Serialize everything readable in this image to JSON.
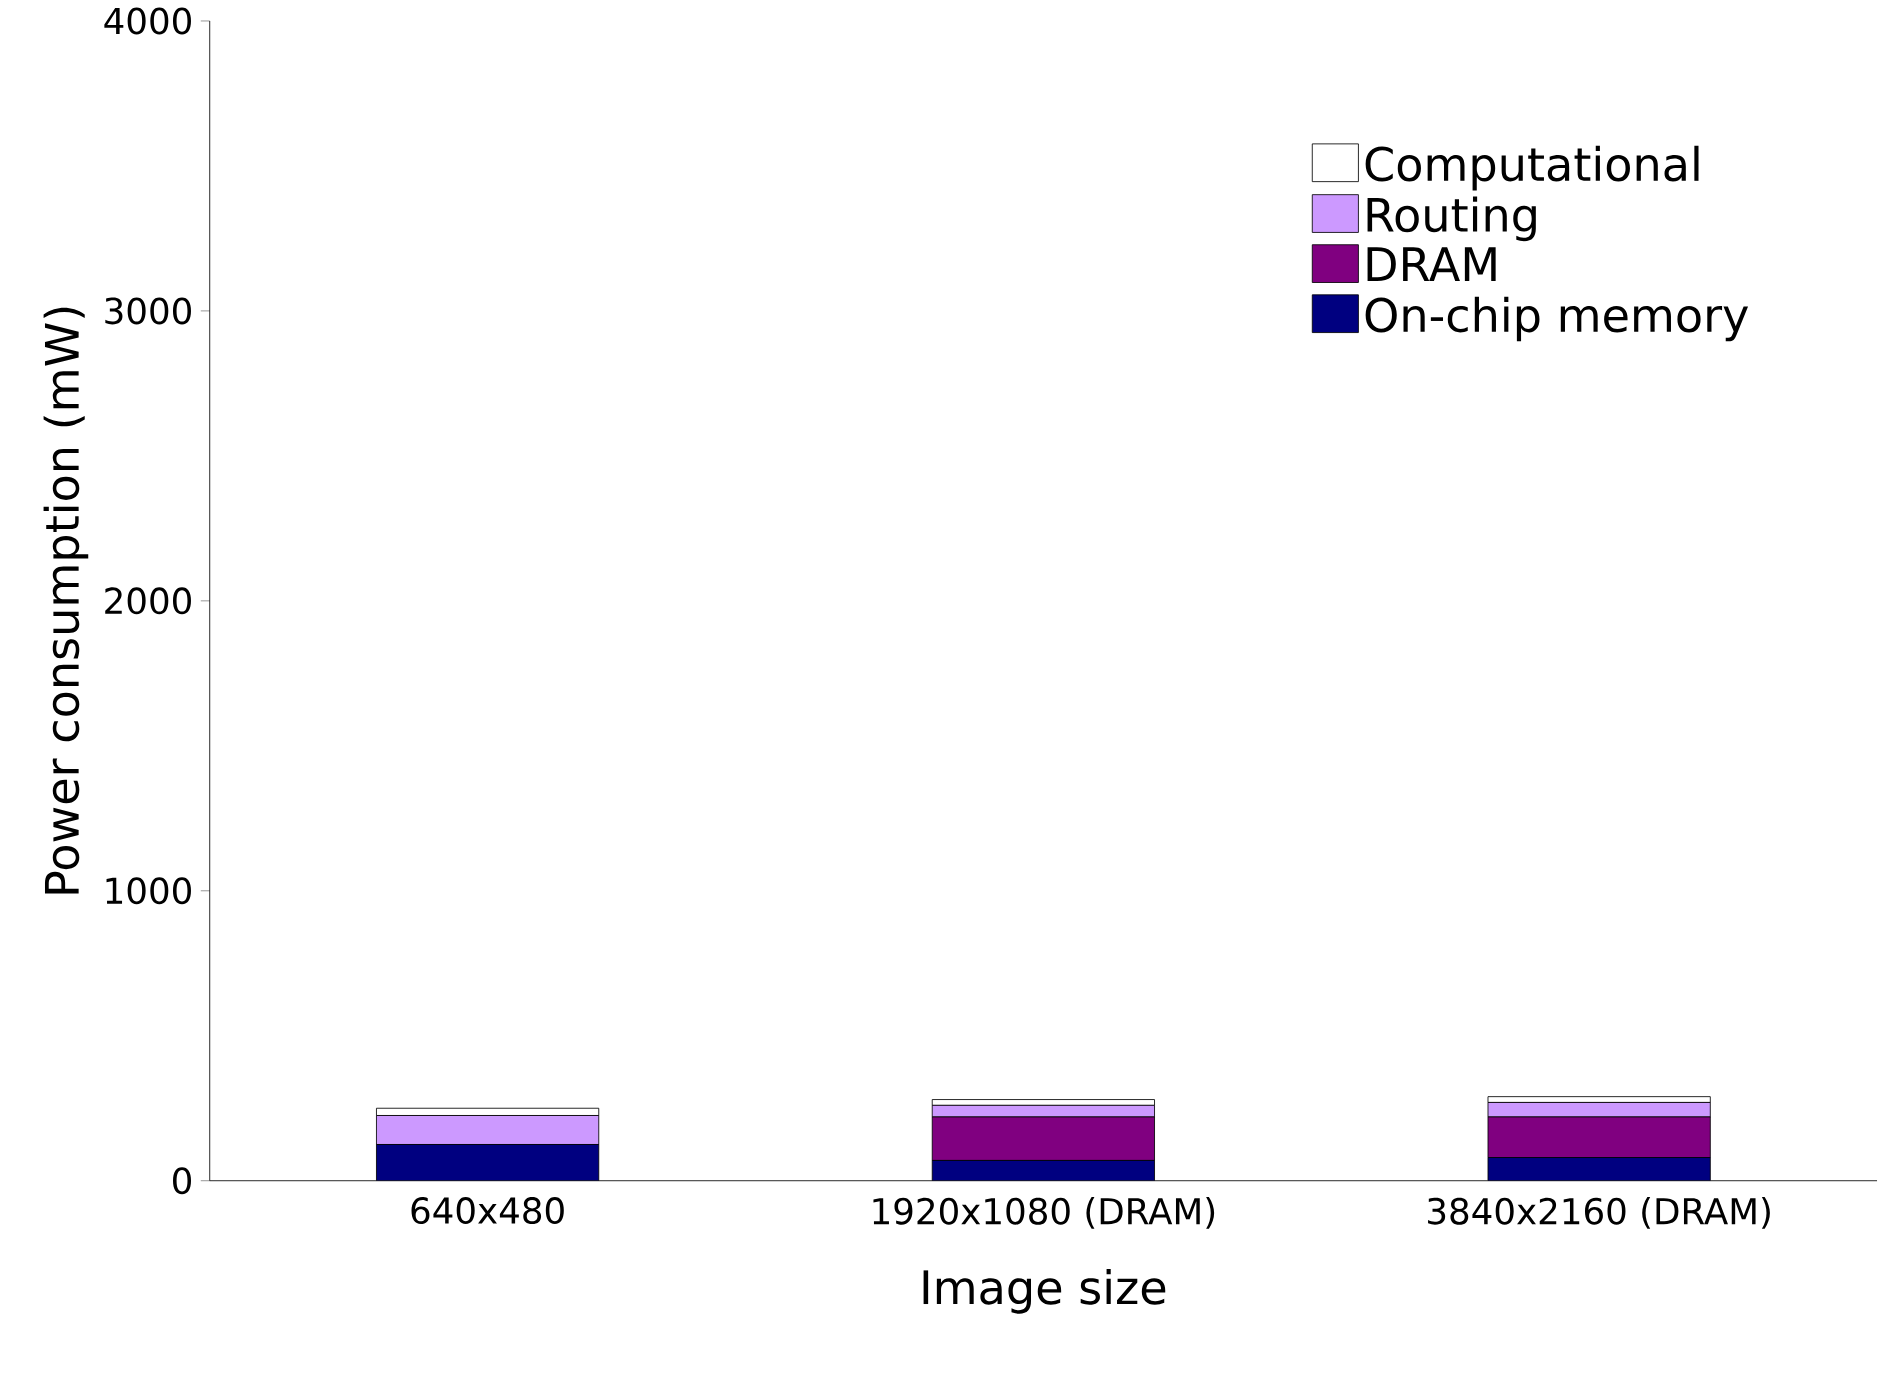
{
  "chart_data": {
    "type": "bar",
    "stacked": true,
    "xlabel": "Image size",
    "ylabel": "Power consumption (mW)",
    "categories": [
      "640x480",
      "1920x1080 (DRAM)",
      "3840x2160 (DRAM)"
    ],
    "series": [
      {
        "name": "On-chip memory",
        "color": "#000080",
        "values": [
          125,
          70,
          80
        ]
      },
      {
        "name": "DRAM",
        "color": "#800080",
        "values": [
          0,
          150,
          140
        ]
      },
      {
        "name": "Routing",
        "color": "#cc99ff",
        "values": [
          100,
          40,
          50
        ]
      },
      {
        "name": "Computational",
        "color": "#ffffff",
        "values": [
          25,
          20,
          20
        ]
      }
    ],
    "ylim": [
      0,
      4000
    ],
    "yticks": [
      0,
      1000,
      2000,
      3000,
      4000
    ],
    "legend": "top right"
  }
}
